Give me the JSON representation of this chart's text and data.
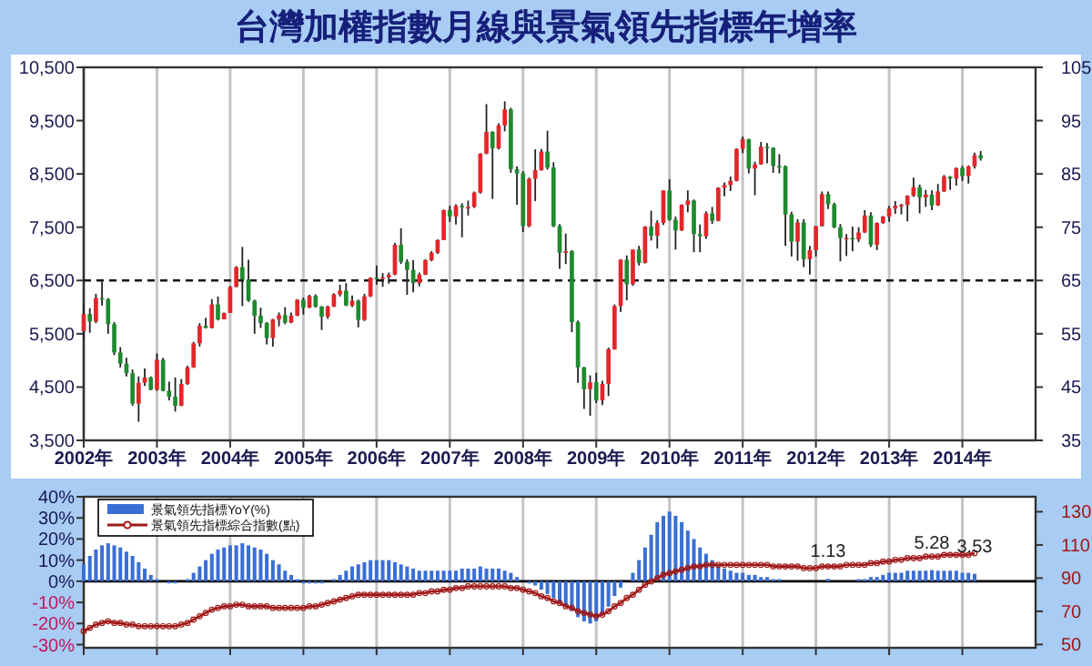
{
  "chart_data": [
    {
      "type": "candlestick",
      "title": "台灣加權指數月線與景氣領先指標年增率",
      "x": [
        "2002-01",
        "2002-02",
        "2002-03",
        "2002-04",
        "2002-05",
        "2002-06",
        "2002-07",
        "2002-08",
        "2002-09",
        "2002-10",
        "2002-11",
        "2002-12",
        "2003-01",
        "2003-02",
        "2003-03",
        "2003-04",
        "2003-05",
        "2003-06",
        "2003-07",
        "2003-08",
        "2003-09",
        "2003-10",
        "2003-11",
        "2003-12",
        "2004-01",
        "2004-02",
        "2004-03",
        "2004-04",
        "2004-05",
        "2004-06",
        "2004-07",
        "2004-08",
        "2004-09",
        "2004-10",
        "2004-11",
        "2004-12",
        "2005-01",
        "2005-02",
        "2005-03",
        "2005-04",
        "2005-05",
        "2005-06",
        "2005-07",
        "2005-08",
        "2005-09",
        "2005-10",
        "2005-11",
        "2005-12",
        "2006-01",
        "2006-02",
        "2006-03",
        "2006-04",
        "2006-05",
        "2006-06",
        "2006-07",
        "2006-08",
        "2006-09",
        "2006-10",
        "2006-11",
        "2006-12",
        "2007-01",
        "2007-02",
        "2007-03",
        "2007-04",
        "2007-05",
        "2007-06",
        "2007-07",
        "2007-08",
        "2007-09",
        "2007-10",
        "2007-11",
        "2007-12",
        "2008-01",
        "2008-02",
        "2008-03",
        "2008-04",
        "2008-05",
        "2008-06",
        "2008-07",
        "2008-08",
        "2008-09",
        "2008-10",
        "2008-11",
        "2008-12",
        "2009-01",
        "2009-02",
        "2009-03",
        "2009-04",
        "2009-05",
        "2009-06",
        "2009-07",
        "2009-08",
        "2009-09",
        "2009-10",
        "2009-11",
        "2009-12",
        "2010-01",
        "2010-02",
        "2010-03",
        "2010-04",
        "2010-05",
        "2010-06",
        "2010-07",
        "2010-08",
        "2010-09",
        "2010-10",
        "2010-11",
        "2010-12",
        "2011-01",
        "2011-02",
        "2011-03",
        "2011-04",
        "2011-05",
        "2011-06",
        "2011-07",
        "2011-08",
        "2011-09",
        "2011-10",
        "2011-11",
        "2011-12",
        "2012-01",
        "2012-02",
        "2012-03",
        "2012-04",
        "2012-05",
        "2012-06",
        "2012-07",
        "2012-08",
        "2012-09",
        "2012-10",
        "2012-11",
        "2012-12",
        "2013-01",
        "2013-02",
        "2013-03",
        "2013-04",
        "2013-05",
        "2013-06",
        "2013-07",
        "2013-08",
        "2013-09",
        "2013-10",
        "2013-11",
        "2013-12",
        "2014-01",
        "2014-02",
        "2014-03",
        "2014-04"
      ],
      "ohlc": [
        [
          5550,
          6050,
          5400,
          5870
        ],
        [
          5870,
          5980,
          5520,
          5730
        ],
        [
          5730,
          6250,
          5700,
          6170
        ],
        [
          6170,
          6480,
          6030,
          6150
        ],
        [
          6150,
          6170,
          5500,
          5680
        ],
        [
          5680,
          5720,
          5100,
          5150
        ],
        [
          5150,
          5250,
          4870,
          4940
        ],
        [
          4940,
          5050,
          4700,
          4760
        ],
        [
          4760,
          4830,
          4150,
          4190
        ],
        [
          4190,
          4700,
          3850,
          4580
        ],
        [
          4580,
          4850,
          4520,
          4680
        ],
        [
          4680,
          4700,
          4440,
          4450
        ],
        [
          4450,
          5130,
          4430,
          5010
        ],
        [
          5010,
          5050,
          4420,
          4430
        ],
        [
          4430,
          4600,
          4250,
          4320
        ],
        [
          4320,
          4680,
          4040,
          4150
        ],
        [
          4150,
          4650,
          4140,
          4560
        ],
        [
          4560,
          4900,
          4540,
          4870
        ],
        [
          4870,
          5350,
          4860,
          5320
        ],
        [
          5320,
          5700,
          5260,
          5650
        ],
        [
          5650,
          5800,
          5600,
          5610
        ],
        [
          5610,
          6150,
          5600,
          6050
        ],
        [
          6050,
          6200,
          5750,
          5770
        ],
        [
          5770,
          5900,
          5770,
          5890
        ],
        [
          5890,
          6400,
          5890,
          6380
        ],
        [
          6380,
          6770,
          6370,
          6750
        ],
        [
          6750,
          7130,
          6020,
          6520
        ],
        [
          6520,
          6890,
          6100,
          6120
        ],
        [
          6120,
          6140,
          5500,
          5840
        ],
        [
          5840,
          5990,
          5610,
          5700
        ],
        [
          5700,
          5720,
          5300,
          5420
        ],
        [
          5420,
          5780,
          5260,
          5770
        ],
        [
          5770,
          5900,
          5640,
          5850
        ],
        [
          5850,
          6000,
          5680,
          5710
        ],
        [
          5710,
          5900,
          5700,
          5840
        ],
        [
          5840,
          6150,
          5830,
          6140
        ],
        [
          6140,
          6180,
          5860,
          5990
        ],
        [
          5990,
          6230,
          5980,
          6210
        ],
        [
          6210,
          6240,
          5990,
          6010
        ],
        [
          6010,
          6020,
          5570,
          5820
        ],
        [
          5820,
          6030,
          5780,
          6010
        ],
        [
          6010,
          6260,
          6000,
          6240
        ],
        [
          6240,
          6420,
          6200,
          6310
        ],
        [
          6310,
          6450,
          6020,
          6030
        ],
        [
          6030,
          6220,
          6000,
          6120
        ],
        [
          6120,
          6140,
          5620,
          5760
        ],
        [
          5760,
          6250,
          5740,
          6200
        ],
        [
          6200,
          6560,
          6190,
          6550
        ],
        [
          6550,
          6780,
          6420,
          6530
        ],
        [
          6530,
          6640,
          6380,
          6560
        ],
        [
          6560,
          6650,
          6440,
          6610
        ],
        [
          6610,
          7210,
          6600,
          7170
        ],
        [
          7170,
          7480,
          6810,
          6850
        ],
        [
          6850,
          6900,
          6230,
          6700
        ],
        [
          6700,
          6880,
          6280,
          6450
        ],
        [
          6450,
          6650,
          6390,
          6610
        ],
        [
          6610,
          6900,
          6600,
          6880
        ],
        [
          6880,
          7050,
          6860,
          7020
        ],
        [
          7020,
          7270,
          7000,
          7260
        ],
        [
          7260,
          7830,
          7260,
          7820
        ],
        [
          7820,
          7900,
          7600,
          7700
        ],
        [
          7700,
          7930,
          7550,
          7900
        ],
        [
          7900,
          7950,
          7310,
          7880
        ],
        [
          7880,
          8000,
          7720,
          7880
        ],
        [
          7880,
          8170,
          7860,
          8150
        ],
        [
          8150,
          8890,
          8130,
          8880
        ],
        [
          8880,
          9810,
          8870,
          9290
        ],
        [
          9290,
          9300,
          8030,
          8980
        ],
        [
          8980,
          9450,
          8960,
          9410
        ],
        [
          9410,
          9860,
          9300,
          9710
        ],
        [
          9710,
          9740,
          8520,
          8590
        ],
        [
          8590,
          8640,
          7920,
          8510
        ],
        [
          8510,
          8550,
          7410,
          7520
        ],
        [
          7520,
          8430,
          7500,
          8410
        ],
        [
          8410,
          8960,
          7990,
          8570
        ],
        [
          8570,
          8970,
          8560,
          8920
        ],
        [
          8920,
          9310,
          8580,
          8620
        ],
        [
          8620,
          8720,
          7500,
          7520
        ],
        [
          7520,
          7560,
          6720,
          7020
        ],
        [
          7020,
          7380,
          6810,
          7050
        ],
        [
          7050,
          7070,
          5530,
          5720
        ],
        [
          5720,
          5750,
          4580,
          4870
        ],
        [
          4870,
          4880,
          4090,
          4460
        ],
        [
          4460,
          4720,
          3960,
          4590
        ],
        [
          4590,
          4770,
          4200,
          4250
        ],
        [
          4250,
          4620,
          4160,
          4560
        ],
        [
          4560,
          5240,
          4330,
          5210
        ],
        [
          5210,
          6050,
          5200,
          6020
        ],
        [
          6020,
          6900,
          5910,
          6890
        ],
        [
          6890,
          6970,
          6130,
          6430
        ],
        [
          6430,
          7080,
          6400,
          7080
        ],
        [
          7080,
          7150,
          6780,
          6830
        ],
        [
          6830,
          7520,
          6820,
          7510
        ],
        [
          7510,
          7810,
          7250,
          7340
        ],
        [
          7340,
          7630,
          7100,
          7580
        ],
        [
          7580,
          8190,
          7540,
          8190
        ],
        [
          8190,
          8400,
          7620,
          7640
        ],
        [
          7640,
          7700,
          7080,
          7440
        ],
        [
          7440,
          7930,
          7430,
          7920
        ],
        [
          7920,
          8190,
          7780,
          8000
        ],
        [
          8000,
          8020,
          7030,
          7370
        ],
        [
          7370,
          7550,
          7030,
          7330
        ],
        [
          7330,
          7800,
          7280,
          7760
        ],
        [
          7760,
          7880,
          7560,
          7620
        ],
        [
          7620,
          8250,
          7610,
          8240
        ],
        [
          8240,
          8340,
          8080,
          8290
        ],
        [
          8290,
          8450,
          8180,
          8370
        ],
        [
          8370,
          8980,
          8360,
          8970
        ],
        [
          8970,
          9200,
          8890,
          9150
        ],
        [
          9150,
          9160,
          8510,
          8600
        ],
        [
          8600,
          8730,
          8100,
          8680
        ],
        [
          8680,
          9100,
          8670,
          9010
        ],
        [
          9010,
          9080,
          8700,
          8990
        ],
        [
          8990,
          9000,
          8520,
          8650
        ],
        [
          8650,
          8870,
          8510,
          8640
        ],
        [
          8640,
          8660,
          7150,
          7740
        ],
        [
          7740,
          7790,
          6950,
          7230
        ],
        [
          7230,
          7650,
          6870,
          7590
        ],
        [
          7590,
          7650,
          6750,
          6900
        ],
        [
          6900,
          7150,
          6610,
          7070
        ],
        [
          7070,
          7520,
          6950,
          7520
        ],
        [
          7520,
          8170,
          7510,
          8120
        ],
        [
          8120,
          8170,
          7840,
          7930
        ],
        [
          7930,
          7960,
          7480,
          7500
        ],
        [
          7500,
          7560,
          6860,
          7300
        ],
        [
          7300,
          7370,
          6960,
          7300
        ],
        [
          7300,
          7510,
          7050,
          7270
        ],
        [
          7270,
          7500,
          7220,
          7400
        ],
        [
          7400,
          7820,
          7390,
          7720
        ],
        [
          7720,
          7780,
          7130,
          7170
        ],
        [
          7170,
          7590,
          7070,
          7580
        ],
        [
          7580,
          7710,
          7560,
          7700
        ],
        [
          7700,
          7900,
          7600,
          7850
        ],
        [
          7850,
          7990,
          7750,
          7900
        ],
        [
          7900,
          7940,
          7740,
          7920
        ],
        [
          7920,
          8100,
          7610,
          8090
        ],
        [
          8090,
          8430,
          8070,
          8250
        ],
        [
          8250,
          8300,
          7760,
          8060
        ],
        [
          8060,
          8200,
          7880,
          8110
        ],
        [
          8110,
          8190,
          7820,
          7910
        ],
        [
          7910,
          8310,
          7900,
          8170
        ],
        [
          8170,
          8480,
          8160,
          8450
        ],
        [
          8450,
          8460,
          8200,
          8410
        ],
        [
          8410,
          8620,
          8280,
          8610
        ],
        [
          8610,
          8650,
          8370,
          8460
        ],
        [
          8460,
          8660,
          8320,
          8640
        ],
        [
          8640,
          8900,
          8600,
          8850
        ],
        [
          8850,
          8930,
          8750,
          8790
        ]
      ],
      "xlim": [
        "2002-01",
        "2015-01"
      ],
      "xticks": [
        {
          "value": "2002-01",
          "label": "2002年"
        },
        {
          "value": "2003-01",
          "label": "2003年"
        },
        {
          "value": "2004-01",
          "label": "2004年"
        },
        {
          "value": "2005-01",
          "label": "2005年"
        },
        {
          "value": "2006-01",
          "label": "2006年"
        },
        {
          "value": "2007-01",
          "label": "2007年"
        },
        {
          "value": "2008-01",
          "label": "2008年"
        },
        {
          "value": "2009-01",
          "label": "2009年"
        },
        {
          "value": "2010-01",
          "label": "2010年"
        },
        {
          "value": "2011-01",
          "label": "2011年"
        },
        {
          "value": "2012-01",
          "label": "2012年"
        },
        {
          "value": "2013-01",
          "label": "2013年"
        },
        {
          "value": "2014-01",
          "label": "2014年"
        }
      ],
      "ylim": [
        3500,
        10500
      ],
      "yticks": [
        {
          "value": 3500,
          "label": "3,500"
        },
        {
          "value": 4500,
          "label": "4,500"
        },
        {
          "value": 5500,
          "label": "5,500"
        },
        {
          "value": 6500,
          "label": "6,500"
        },
        {
          "value": 7500,
          "label": "7,500"
        },
        {
          "value": 8500,
          "label": "8,500"
        },
        {
          "value": 9500,
          "label": "9,500"
        },
        {
          "value": 10500,
          "label": "10,500"
        }
      ],
      "y2lim": [
        35,
        105
      ],
      "y2ticks": [
        35,
        45,
        55,
        65,
        75,
        85,
        95,
        105
      ],
      "grid": "x",
      "ref_lines": [
        {
          "axis": "y",
          "value": 6500,
          "line_style": "dashed"
        }
      ]
    },
    {
      "type": "bar",
      "x": [
        "2002-01",
        "2002-02",
        "2002-03",
        "2002-04",
        "2002-05",
        "2002-06",
        "2002-07",
        "2002-08",
        "2002-09",
        "2002-10",
        "2002-11",
        "2002-12",
        "2003-01",
        "2003-02",
        "2003-03",
        "2003-04",
        "2003-05",
        "2003-06",
        "2003-07",
        "2003-08",
        "2003-09",
        "2003-10",
        "2003-11",
        "2003-12",
        "2004-01",
        "2004-02",
        "2004-03",
        "2004-04",
        "2004-05",
        "2004-06",
        "2004-07",
        "2004-08",
        "2004-09",
        "2004-10",
        "2004-11",
        "2004-12",
        "2005-01",
        "2005-02",
        "2005-03",
        "2005-04",
        "2005-05",
        "2005-06",
        "2005-07",
        "2005-08",
        "2005-09",
        "2005-10",
        "2005-11",
        "2005-12",
        "2006-01",
        "2006-02",
        "2006-03",
        "2006-04",
        "2006-05",
        "2006-06",
        "2006-07",
        "2006-08",
        "2006-09",
        "2006-10",
        "2006-11",
        "2006-12",
        "2007-01",
        "2007-02",
        "2007-03",
        "2007-04",
        "2007-05",
        "2007-06",
        "2007-07",
        "2007-08",
        "2007-09",
        "2007-10",
        "2007-11",
        "2007-12",
        "2008-01",
        "2008-02",
        "2008-03",
        "2008-04",
        "2008-05",
        "2008-06",
        "2008-07",
        "2008-08",
        "2008-09",
        "2008-10",
        "2008-11",
        "2008-12",
        "2009-01",
        "2009-02",
        "2009-03",
        "2009-04",
        "2009-05",
        "2009-06",
        "2009-07",
        "2009-08",
        "2009-09",
        "2009-10",
        "2009-11",
        "2009-12",
        "2010-01",
        "2010-02",
        "2010-03",
        "2010-04",
        "2010-05",
        "2010-06",
        "2010-07",
        "2010-08",
        "2010-09",
        "2010-10",
        "2010-11",
        "2010-12",
        "2011-01",
        "2011-02",
        "2011-03",
        "2011-04",
        "2011-05",
        "2011-06",
        "2011-07",
        "2011-08",
        "2011-09",
        "2011-10",
        "2011-11",
        "2011-12",
        "2012-01",
        "2012-02",
        "2012-03",
        "2012-04",
        "2012-05",
        "2012-06",
        "2012-07",
        "2012-08",
        "2012-09",
        "2012-10",
        "2012-11",
        "2012-12",
        "2013-01",
        "2013-02",
        "2013-03",
        "2013-04",
        "2013-05",
        "2013-06",
        "2013-07",
        "2013-08",
        "2013-09",
        "2013-10",
        "2013-11",
        "2013-12",
        "2014-01",
        "2014-02",
        "2014-03"
      ],
      "series": [
        {
          "name": "景氣領先指標YoY(%)",
          "type": "bar",
          "color": "#3a6fd4",
          "values": [
            8,
            12,
            15,
            17,
            18,
            17,
            16,
            14,
            12,
            9,
            6,
            3,
            1,
            0,
            -1,
            -1,
            0,
            1,
            4,
            7,
            10,
            13,
            15,
            16,
            17,
            17,
            18,
            17,
            16,
            15,
            13,
            10,
            8,
            5,
            3,
            1,
            -1,
            -1,
            -1,
            -1,
            0,
            1,
            3,
            5,
            7,
            8,
            9,
            10,
            10,
            10,
            10,
            9,
            8,
            7,
            6,
            5,
            5,
            5,
            5,
            5,
            5,
            5,
            6,
            6,
            6,
            7,
            6,
            6,
            6,
            5,
            4,
            2,
            0,
            -1,
            -2,
            -4,
            -6,
            -8,
            -10,
            -12,
            -14,
            -17,
            -19,
            -20,
            -19,
            -16,
            -12,
            -7,
            -3,
            0,
            4,
            10,
            16,
            22,
            28,
            31,
            33,
            31,
            28,
            24,
            20,
            16,
            13,
            10,
            8,
            6,
            5,
            4,
            4,
            3,
            3,
            2,
            2,
            1,
            1,
            0,
            0,
            0,
            0,
            0,
            0,
            0,
            1.13,
            0,
            0,
            0,
            0,
            1,
            1,
            2,
            2,
            3,
            4,
            4,
            4,
            5,
            5,
            5,
            5,
            5.28,
            5,
            5,
            5,
            5,
            4,
            4,
            3.53
          ],
          "value_labels": [
            null,
            null,
            null,
            null,
            null,
            null,
            null,
            null,
            null,
            null,
            null,
            null,
            null,
            null,
            null,
            null,
            null,
            null,
            null,
            null,
            null,
            null,
            null,
            null,
            null,
            null,
            null,
            null,
            null,
            null,
            null,
            null,
            null,
            null,
            null,
            null,
            null,
            null,
            null,
            null,
            null,
            null,
            null,
            null,
            null,
            null,
            null,
            null,
            null,
            null,
            null,
            null,
            null,
            null,
            null,
            null,
            null,
            null,
            null,
            null,
            null,
            null,
            null,
            null,
            null,
            null,
            null,
            null,
            null,
            null,
            null,
            null,
            null,
            null,
            null,
            null,
            null,
            null,
            null,
            null,
            null,
            null,
            null,
            null,
            null,
            null,
            null,
            null,
            null,
            null,
            null,
            null,
            null,
            null,
            null,
            null,
            null,
            null,
            null,
            null,
            null,
            null,
            null,
            null,
            null,
            null,
            null,
            null,
            null,
            null,
            null,
            null,
            null,
            null,
            null,
            null,
            null,
            null,
            null,
            null,
            null,
            null,
            "1.13",
            null,
            null,
            null,
            null,
            null,
            null,
            null,
            null,
            null,
            null,
            null,
            null,
            null,
            null,
            null,
            null,
            "5.28",
            null,
            null,
            null,
            null,
            null,
            null,
            "3.53"
          ]
        },
        {
          "name": "景氣領先指標綜合指數(點)",
          "type": "line",
          "axis": "y2",
          "color": "#a01818",
          "values": [
            58,
            60,
            62,
            63,
            64,
            63,
            63,
            62,
            62,
            61,
            61,
            61,
            61,
            61,
            61,
            61,
            62,
            63,
            65,
            67,
            69,
            71,
            72,
            73,
            73,
            74,
            74,
            73,
            73,
            73,
            73,
            72,
            72,
            72,
            72,
            72,
            72,
            73,
            73,
            74,
            75,
            76,
            77,
            78,
            79,
            80,
            80,
            80,
            80,
            80,
            80,
            80,
            80,
            80,
            80,
            81,
            81,
            82,
            82,
            83,
            83,
            84,
            84,
            85,
            85,
            85,
            85,
            85,
            85,
            85,
            84,
            84,
            83,
            82,
            81,
            79,
            78,
            76,
            75,
            73,
            72,
            70,
            69,
            68,
            67,
            68,
            70,
            73,
            75,
            78,
            80,
            83,
            86,
            88,
            90,
            92,
            93,
            94,
            95,
            96,
            97,
            97,
            98,
            98,
            98,
            98,
            98,
            98,
            98,
            98,
            98,
            98,
            98,
            97,
            97,
            97,
            97,
            97,
            96,
            96,
            96,
            97,
            97,
            97,
            97,
            98,
            98,
            98,
            98,
            99,
            99,
            100,
            100,
            101,
            101,
            102,
            102,
            102,
            103,
            103,
            103,
            104,
            104,
            104,
            104,
            104,
            105
          ]
        }
      ],
      "marker": "circle",
      "xlim": [
        "2002-01",
        "2015-01"
      ],
      "xticks": [
        {
          "value": "2002-01",
          "label": null
        },
        {
          "value": "2003-01",
          "label": null
        },
        {
          "value": "2004-01",
          "label": null
        },
        {
          "value": "2005-01",
          "label": null
        },
        {
          "value": "2006-01",
          "label": null
        },
        {
          "value": "2007-01",
          "label": null
        },
        {
          "value": "2008-01",
          "label": null
        },
        {
          "value": "2009-01",
          "label": null
        },
        {
          "value": "2010-01",
          "label": null
        },
        {
          "value": "2011-01",
          "label": null
        },
        {
          "value": "2012-01",
          "label": null
        },
        {
          "value": "2013-01",
          "label": null
        },
        {
          "value": "2014-01",
          "label": null
        }
      ],
      "ylim": [
        -31.5,
        40
      ],
      "yticks": [
        {
          "value": -30,
          "label": "-30%"
        },
        {
          "value": -20,
          "label": "-20%"
        },
        {
          "value": -10,
          "label": "-10%"
        },
        {
          "value": 0,
          "label": "0%"
        },
        {
          "value": 10,
          "label": "10%"
        },
        {
          "value": 20,
          "label": "20%"
        },
        {
          "value": 30,
          "label": "30%"
        },
        {
          "value": 40,
          "label": "40%"
        }
      ],
      "y2lim": [
        48,
        139
      ],
      "y2ticks": [
        50,
        70,
        90,
        110,
        130
      ],
      "grid": "x",
      "legend": "top left",
      "tick_labels": "y"
    }
  ]
}
